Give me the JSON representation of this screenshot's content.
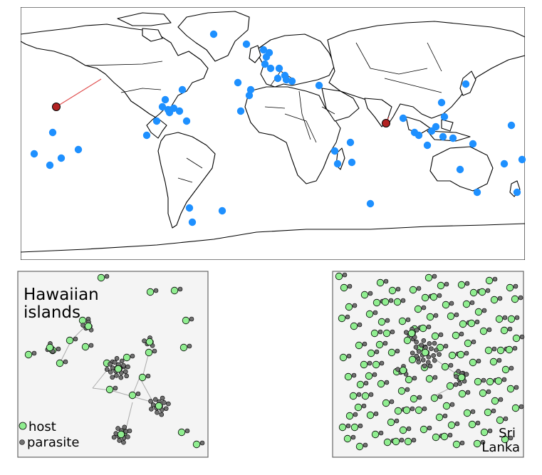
{
  "panels": {
    "hawaii": {
      "title_line1": "Hawaiian",
      "title_line2": "islands",
      "legend": {
        "host_label": "host",
        "parasite_label": "parasite"
      }
    },
    "srilanka": {
      "title_line1": "Sri",
      "title_line2": "Lanka"
    }
  },
  "colors": {
    "ocean": "#ffffff",
    "land_stroke": "#000000",
    "island_point": "#1e90ff",
    "highlight_point": "#b22222",
    "connector": "#e05050",
    "panel_bg": "#f4f4f4",
    "panel_border": "#666666",
    "host": "#90ee90",
    "parasite": "#707070",
    "edge": "#aaaaaa"
  }
}
